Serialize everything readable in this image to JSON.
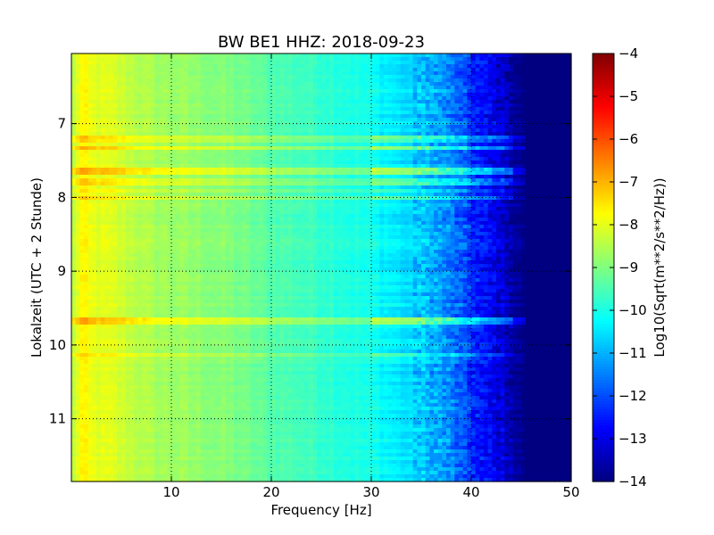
{
  "chart_data": {
    "type": "heatmap",
    "title": "BW BE1 HHZ: 2018-09-23",
    "xlabel": "Frequency [Hz]",
    "ylabel": "Lokalzeit (UTC + 2 Stunde)",
    "xlim": [
      0,
      50
    ],
    "ylim": [
      6.05,
      11.85
    ],
    "y_inverted": true,
    "x_ticks": [
      10,
      20,
      30,
      40,
      50
    ],
    "x_tick_labels": [
      "10",
      "20",
      "30",
      "40",
      "50"
    ],
    "y_ticks": [
      7,
      8,
      9,
      10,
      11
    ],
    "y_tick_labels": [
      "7",
      "8",
      "9",
      "10",
      "11"
    ],
    "grid": true,
    "colormap": "jet",
    "colorbar": {
      "label": "Log10(Sqrt(m**2/s**2/Hz))",
      "range": [
        -14,
        -4
      ],
      "ticks": [
        -4,
        -5,
        -6,
        -7,
        -8,
        -9,
        -10,
        -11,
        -12,
        -13,
        -14
      ],
      "tick_labels": [
        "−4",
        "−5",
        "−6",
        "−7",
        "−8",
        "−9",
        "−10",
        "−11",
        "−12",
        "−13",
        "−14"
      ]
    },
    "frequency_profile": {
      "frequency_hz": [
        0,
        0.8,
        1.2,
        2,
        4,
        8,
        12,
        16,
        20,
        25,
        30,
        33,
        36,
        38,
        40,
        42,
        43.5,
        44.5,
        45.5,
        50
      ],
      "log10_psd": [
        -8.6,
        -7.8,
        -7.7,
        -8.0,
        -8.1,
        -8.6,
        -8.8,
        -9.0,
        -9.4,
        -9.7,
        -10.1,
        -10.5,
        -11.0,
        -11.5,
        -12.3,
        -12.9,
        -13.3,
        -13.8,
        -14.0,
        -14.0
      ]
    },
    "bright_bands": [
      {
        "time_h": 7.2,
        "delta_log10": 1.0
      },
      {
        "time_h": 7.32,
        "delta_log10": 1.4
      },
      {
        "time_h": 7.65,
        "delta_log10": 1.8
      },
      {
        "time_h": 7.8,
        "delta_log10": 1.1
      },
      {
        "time_h": 7.9,
        "delta_log10": 0.8
      },
      {
        "time_h": 8.0,
        "delta_log10": 1.2
      },
      {
        "time_h": 9.68,
        "delta_log10": 1.6
      },
      {
        "time_h": 10.13,
        "delta_log10": 1.0
      }
    ]
  }
}
